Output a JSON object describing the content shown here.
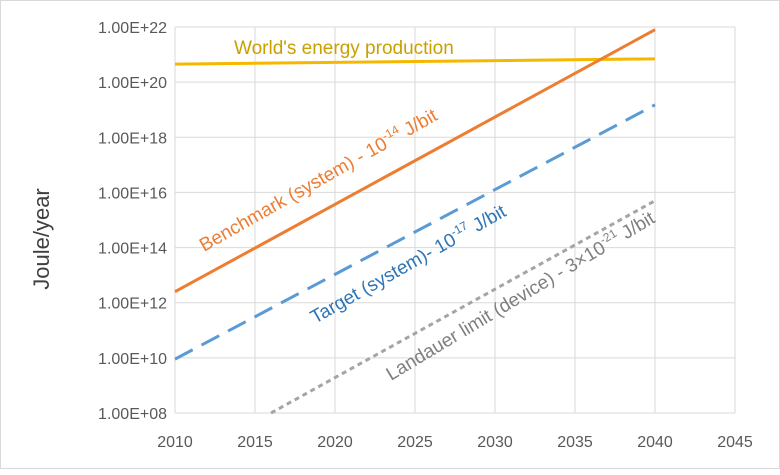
{
  "chart_data": {
    "type": "line",
    "title": "",
    "xlabel": "",
    "ylabel": "Joule/year",
    "xlim": [
      2010,
      2045
    ],
    "ylim": [
      100000000.0,
      1e+22
    ],
    "y_scale": "log",
    "grid": "vertical and horizontal",
    "legend": "none",
    "x_ticks": [
      "2010",
      "2015",
      "2020",
      "2025",
      "2030",
      "2035",
      "2040",
      "2045"
    ],
    "y_ticks": [
      "1.00E+08",
      "1.00E+10",
      "1.00E+12",
      "1.00E+14",
      "1.00E+16",
      "1.00E+18",
      "1.00E+20",
      "1.00E+22"
    ],
    "series": [
      {
        "color": "#F5B800",
        "dash": "solid",
        "x": [
          2010,
          2040
        ],
        "y": [
          4.5e+20,
          7e+20
        ]
      },
      {
        "color": "#ED7D31",
        "dash": "solid",
        "x": [
          2010,
          2040
        ],
        "y": [
          2500000000000.0,
          8e+21
        ]
      },
      {
        "color": "#5B9BD5",
        "dash": "dashed",
        "x": [
          2010,
          2040
        ],
        "y": [
          9000000000.0,
          1.5e+19
        ]
      },
      {
        "color": "#A5A5A5",
        "dash": "dotted",
        "x": [
          2016,
          2040
        ],
        "y": [
          100000000.0,
          5000000000000000.0
        ]
      }
    ],
    "annotations": [
      {
        "name": "worlds-energy",
        "color": "#C9A000",
        "pre": "World's energy production",
        "sup": "",
        "post": ""
      },
      {
        "name": "benchmark",
        "color": "#ED7D31",
        "pre": "Benchmark (system) - 10",
        "sup": "-14",
        "post": " J/bit"
      },
      {
        "name": "target",
        "color": "#2E75B6",
        "pre": "Target (system)- 10",
        "sup": "-17",
        "post": " J/bit"
      },
      {
        "name": "landauer",
        "color": "#7F7F7F",
        "pre": "Landauer limit (device) - 3×10",
        "sup": "-21",
        "post": " J/bit"
      }
    ]
  }
}
